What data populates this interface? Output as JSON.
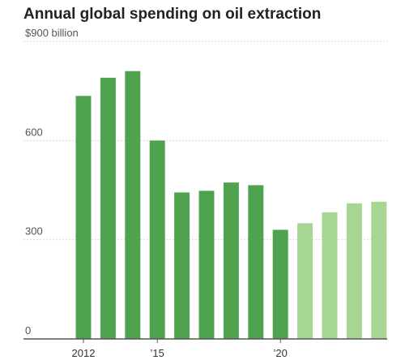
{
  "title": "Annual global spending on oil extraction",
  "colors": {
    "actual": "#4fa34f",
    "projected": "#a6d594"
  },
  "chart_data": {
    "type": "bar",
    "title": "Annual global spending on oil extraction",
    "xlabel": "",
    "ylabel": "",
    "categories": [
      "2012",
      "2013",
      "2014",
      "2015",
      "2016",
      "2017",
      "2018",
      "2019",
      "2020",
      "2021",
      "2022",
      "2023",
      "2024"
    ],
    "values": [
      735,
      790,
      810,
      600,
      443,
      448,
      473,
      465,
      330,
      350,
      383,
      410,
      415
    ],
    "projected_from": "2021",
    "ylim": [
      0,
      900
    ],
    "yticks": [
      {
        "value": 900,
        "label": "$900 billion"
      },
      {
        "value": 600,
        "label": "600"
      },
      {
        "value": 300,
        "label": "300"
      },
      {
        "value": 0,
        "label": "0"
      }
    ],
    "xticks": [
      {
        "category": "2012",
        "label": "2012"
      },
      {
        "category": "2015",
        "label": "’15"
      },
      {
        "category": "2020",
        "label": "’20"
      }
    ],
    "grid": true
  }
}
